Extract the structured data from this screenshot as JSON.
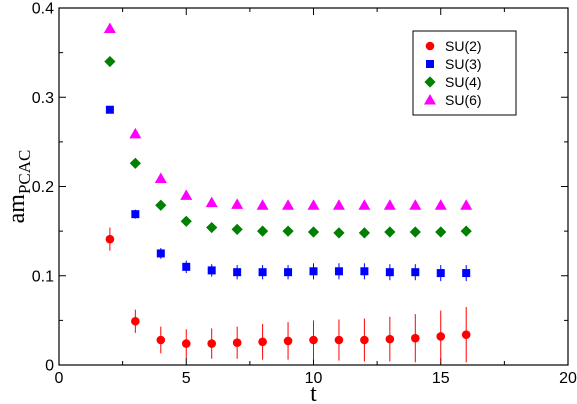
{
  "chart_data": {
    "type": "scatter",
    "xlabel": "t",
    "ylabel": {
      "main": "am",
      "subscript": "PCAC"
    },
    "xlim": [
      0,
      20
    ],
    "ylim": [
      0,
      0.4
    ],
    "xticks": [
      0,
      5,
      10,
      15,
      20
    ],
    "yticks": [
      0,
      0.1,
      0.2,
      0.3,
      0.4
    ],
    "xtick_labels": [
      "0",
      "5",
      "10",
      "15",
      "20"
    ],
    "ytick_labels": [
      "0",
      "0.1",
      "0.2",
      "0.3",
      "0.4"
    ],
    "grid": false,
    "legend_position": "top-right",
    "series": [
      {
        "name": "SU(2)",
        "marker": "circle",
        "color": "#ff0000",
        "points": [
          {
            "x": 2,
            "y": 0.141,
            "err": 0.013
          },
          {
            "x": 3,
            "y": 0.049,
            "err": 0.013
          },
          {
            "x": 4,
            "y": 0.028,
            "err": 0.015
          },
          {
            "x": 5,
            "y": 0.024,
            "err": 0.016
          },
          {
            "x": 6,
            "y": 0.024,
            "err": 0.017
          },
          {
            "x": 7,
            "y": 0.025,
            "err": 0.018
          },
          {
            "x": 8,
            "y": 0.026,
            "err": 0.02
          },
          {
            "x": 9,
            "y": 0.027,
            "err": 0.021
          },
          {
            "x": 10,
            "y": 0.028,
            "err": 0.022
          },
          {
            "x": 11,
            "y": 0.028,
            "err": 0.023
          },
          {
            "x": 12,
            "y": 0.028,
            "err": 0.024
          },
          {
            "x": 13,
            "y": 0.029,
            "err": 0.025
          },
          {
            "x": 14,
            "y": 0.03,
            "err": 0.027
          },
          {
            "x": 15,
            "y": 0.032,
            "err": 0.029
          },
          {
            "x": 16,
            "y": 0.034,
            "err": 0.031
          }
        ]
      },
      {
        "name": "SU(3)",
        "marker": "square",
        "color": "#0000ff",
        "points": [
          {
            "x": 2,
            "y": 0.286,
            "err": 0.004
          },
          {
            "x": 3,
            "y": 0.169,
            "err": 0.005
          },
          {
            "x": 4,
            "y": 0.125,
            "err": 0.006
          },
          {
            "x": 5,
            "y": 0.11,
            "err": 0.007
          },
          {
            "x": 6,
            "y": 0.106,
            "err": 0.007
          },
          {
            "x": 7,
            "y": 0.104,
            "err": 0.008
          },
          {
            "x": 8,
            "y": 0.104,
            "err": 0.008
          },
          {
            "x": 9,
            "y": 0.104,
            "err": 0.008
          },
          {
            "x": 10,
            "y": 0.105,
            "err": 0.009
          },
          {
            "x": 11,
            "y": 0.105,
            "err": 0.009
          },
          {
            "x": 12,
            "y": 0.105,
            "err": 0.009
          },
          {
            "x": 13,
            "y": 0.104,
            "err": 0.009
          },
          {
            "x": 14,
            "y": 0.104,
            "err": 0.009
          },
          {
            "x": 15,
            "y": 0.103,
            "err": 0.009
          },
          {
            "x": 16,
            "y": 0.103,
            "err": 0.009
          }
        ]
      },
      {
        "name": "SU(4)",
        "marker": "diamond",
        "color": "#008000",
        "points": [
          {
            "x": 2,
            "y": 0.34,
            "err": 0.002
          },
          {
            "x": 3,
            "y": 0.226,
            "err": 0.003
          },
          {
            "x": 4,
            "y": 0.179,
            "err": 0.003
          },
          {
            "x": 5,
            "y": 0.161,
            "err": 0.004
          },
          {
            "x": 6,
            "y": 0.154,
            "err": 0.004
          },
          {
            "x": 7,
            "y": 0.152,
            "err": 0.004
          },
          {
            "x": 8,
            "y": 0.15,
            "err": 0.004
          },
          {
            "x": 9,
            "y": 0.15,
            "err": 0.004
          },
          {
            "x": 10,
            "y": 0.149,
            "err": 0.004
          },
          {
            "x": 11,
            "y": 0.148,
            "err": 0.004
          },
          {
            "x": 12,
            "y": 0.148,
            "err": 0.004
          },
          {
            "x": 13,
            "y": 0.149,
            "err": 0.004
          },
          {
            "x": 14,
            "y": 0.149,
            "err": 0.004
          },
          {
            "x": 15,
            "y": 0.149,
            "err": 0.004
          },
          {
            "x": 16,
            "y": 0.15,
            "err": 0.004
          }
        ]
      },
      {
        "name": "SU(6)",
        "marker": "triangle-up",
        "color": "#ff00ff",
        "points": [
          {
            "x": 2,
            "y": 0.377,
            "err": 0.002
          },
          {
            "x": 3,
            "y": 0.259,
            "err": 0.002
          },
          {
            "x": 4,
            "y": 0.209,
            "err": 0.002
          },
          {
            "x": 5,
            "y": 0.19,
            "err": 0.002
          },
          {
            "x": 6,
            "y": 0.182,
            "err": 0.002
          },
          {
            "x": 7,
            "y": 0.18,
            "err": 0.002
          },
          {
            "x": 8,
            "y": 0.179,
            "err": 0.002
          },
          {
            "x": 9,
            "y": 0.179,
            "err": 0.002
          },
          {
            "x": 10,
            "y": 0.179,
            "err": 0.002
          },
          {
            "x": 11,
            "y": 0.179,
            "err": 0.002
          },
          {
            "x": 12,
            "y": 0.179,
            "err": 0.002
          },
          {
            "x": 13,
            "y": 0.179,
            "err": 0.002
          },
          {
            "x": 14,
            "y": 0.179,
            "err": 0.002
          },
          {
            "x": 15,
            "y": 0.179,
            "err": 0.002
          },
          {
            "x": 16,
            "y": 0.179,
            "err": 0.002
          }
        ]
      }
    ]
  }
}
